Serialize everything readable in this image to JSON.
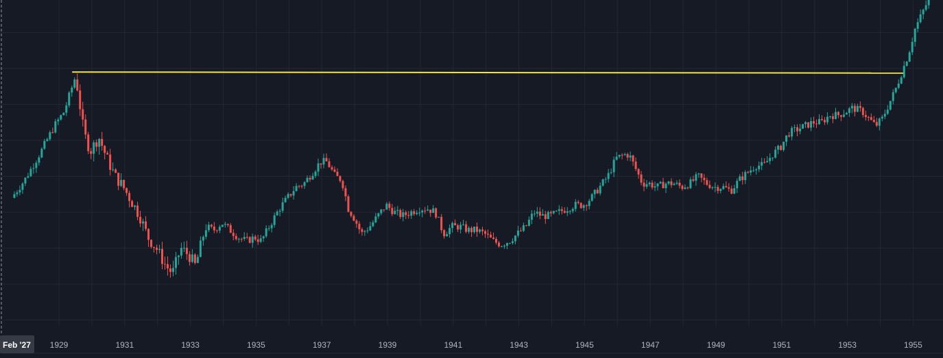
{
  "colors": {
    "background": "#161a25",
    "grid": "#232632",
    "up": "#26a69a",
    "down": "#ef5350",
    "horizontal_line": "#f5e63a",
    "axis_text": "#b2b5be",
    "crosshair": "#9598a1",
    "badge_bg": "#363a45"
  },
  "cursor_label": "Feb '27",
  "chart_data": {
    "type": "candlestick",
    "title": "",
    "xlabel": "",
    "ylabel": "",
    "grid": true,
    "x_tick_labels": [
      "1929",
      "1931",
      "1933",
      "1935",
      "1937",
      "1939",
      "1941",
      "1943",
      "1945",
      "1947",
      "1949",
      "1951",
      "1953",
      "1955"
    ],
    "x_range": [
      1927.6,
      1956.0
    ],
    "y_range": [
      0,
      100
    ],
    "y_axis_labels_visible": false,
    "horizontal_line": {
      "value": 79,
      "from_year": 1929.4,
      "to_year": 1954.7,
      "color": "#f5e63a"
    },
    "price_path": [
      [
        1927.6,
        44
      ],
      [
        1928.0,
        49
      ],
      [
        1928.5,
        57
      ],
      [
        1928.9,
        64
      ],
      [
        1929.2,
        68
      ],
      [
        1929.55,
        78
      ],
      [
        1929.8,
        62
      ],
      [
        1930.0,
        57
      ],
      [
        1930.25,
        61
      ],
      [
        1930.5,
        55
      ],
      [
        1930.75,
        50
      ],
      [
        1931.0,
        47
      ],
      [
        1931.25,
        43
      ],
      [
        1931.5,
        39
      ],
      [
        1931.75,
        33
      ],
      [
        1932.0,
        30
      ],
      [
        1932.3,
        25
      ],
      [
        1932.5,
        23
      ],
      [
        1932.75,
        30
      ],
      [
        1933.0,
        28
      ],
      [
        1933.2,
        25
      ],
      [
        1933.5,
        36
      ],
      [
        1933.75,
        35
      ],
      [
        1934.0,
        37
      ],
      [
        1934.25,
        35
      ],
      [
        1934.5,
        33
      ],
      [
        1934.75,
        32
      ],
      [
        1935.0,
        33
      ],
      [
        1935.2,
        32
      ],
      [
        1935.5,
        37
      ],
      [
        1935.75,
        41
      ],
      [
        1936.0,
        44
      ],
      [
        1936.25,
        47
      ],
      [
        1936.5,
        48
      ],
      [
        1936.75,
        51
      ],
      [
        1937.0,
        54
      ],
      [
        1937.2,
        54
      ],
      [
        1937.45,
        50
      ],
      [
        1937.65,
        49
      ],
      [
        1937.85,
        41
      ],
      [
        1938.05,
        38
      ],
      [
        1938.25,
        34
      ],
      [
        1938.5,
        36
      ],
      [
        1938.75,
        39
      ],
      [
        1939.0,
        42
      ],
      [
        1939.25,
        40
      ],
      [
        1939.5,
        39
      ],
      [
        1939.75,
        40
      ],
      [
        1940.0,
        41
      ],
      [
        1940.25,
        41
      ],
      [
        1940.5,
        40
      ],
      [
        1940.75,
        34
      ],
      [
        1941.0,
        36
      ],
      [
        1941.25,
        36
      ],
      [
        1941.5,
        35
      ],
      [
        1941.75,
        35
      ],
      [
        1942.0,
        34
      ],
      [
        1942.25,
        32
      ],
      [
        1942.5,
        31
      ],
      [
        1942.75,
        32
      ],
      [
        1943.0,
        34
      ],
      [
        1943.25,
        36
      ],
      [
        1943.5,
        40
      ],
      [
        1943.75,
        39
      ],
      [
        1944.0,
        39
      ],
      [
        1944.25,
        40
      ],
      [
        1944.5,
        41
      ],
      [
        1944.75,
        42
      ],
      [
        1945.0,
        42
      ],
      [
        1945.25,
        44
      ],
      [
        1945.5,
        47
      ],
      [
        1945.75,
        50
      ],
      [
        1946.0,
        55
      ],
      [
        1946.25,
        56
      ],
      [
        1946.4,
        56
      ],
      [
        1946.6,
        52
      ],
      [
        1946.8,
        48
      ],
      [
        1947.0,
        48
      ],
      [
        1947.25,
        47
      ],
      [
        1947.5,
        48
      ],
      [
        1947.75,
        48
      ],
      [
        1948.0,
        47
      ],
      [
        1948.25,
        48
      ],
      [
        1948.5,
        50
      ],
      [
        1948.75,
        48
      ],
      [
        1949.0,
        47
      ],
      [
        1949.25,
        47
      ],
      [
        1949.5,
        46
      ],
      [
        1949.75,
        49
      ],
      [
        1950.0,
        51
      ],
      [
        1950.25,
        53
      ],
      [
        1950.5,
        53
      ],
      [
        1950.75,
        56
      ],
      [
        1951.0,
        58
      ],
      [
        1951.25,
        62
      ],
      [
        1951.5,
        63
      ],
      [
        1951.75,
        64
      ],
      [
        1952.0,
        65
      ],
      [
        1952.25,
        65
      ],
      [
        1952.5,
        67
      ],
      [
        1952.75,
        67
      ],
      [
        1953.0,
        68
      ],
      [
        1953.2,
        69
      ],
      [
        1953.5,
        68
      ],
      [
        1953.7,
        66
      ],
      [
        1953.9,
        64
      ],
      [
        1954.1,
        66
      ],
      [
        1954.3,
        70
      ],
      [
        1954.5,
        74
      ],
      [
        1954.7,
        79
      ],
      [
        1954.9,
        84
      ],
      [
        1955.1,
        91
      ],
      [
        1955.3,
        95
      ],
      [
        1955.6,
        101
      ],
      [
        1956.0,
        104
      ]
    ]
  }
}
